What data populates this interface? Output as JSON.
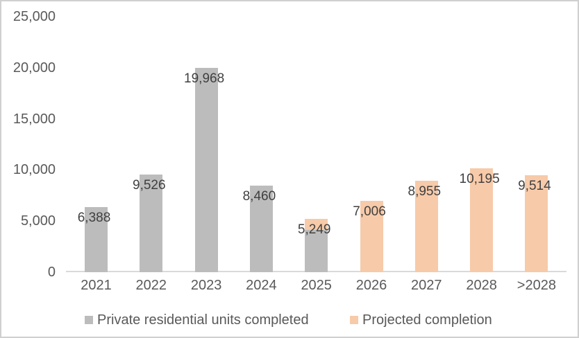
{
  "chart_data": {
    "type": "bar",
    "stacked": true,
    "title": "",
    "xlabel": "",
    "ylabel": "",
    "categories": [
      "2021",
      "2022",
      "2023",
      "2024",
      "2025",
      "2026",
      "2027",
      "2028",
      ">2028"
    ],
    "series": [
      {
        "name": "Private residential units completed",
        "color": "#bcbcbc",
        "values": [
          6388,
          9526,
          19968,
          8460,
          4100,
          0,
          0,
          0,
          0
        ]
      },
      {
        "name": "Projected completion",
        "color": "#f7caa9",
        "values": [
          0,
          0,
          0,
          0,
          1149,
          7006,
          8955,
          10195,
          9514
        ]
      }
    ],
    "bar_total_labels": [
      "6,388",
      "9,526",
      "19,968",
      "8,460",
      "5,249",
      "7,006",
      "8,955",
      "10,195",
      "9,514"
    ],
    "notes": "2025 column is visually split: lower gray segment (completed, ~4,100 est. from pixels) topped by a small orange segment (projected, ~1,149 est.); only the total 5,249 is labeled. All other columns are single-color.",
    "ylim": [
      0,
      25000
    ],
    "y_ticks": {
      "values": [
        0,
        5000,
        10000,
        15000,
        20000,
        25000
      ],
      "labels": [
        "0",
        "5,000",
        "10,000",
        "15,000",
        "20,000",
        "25,000"
      ]
    },
    "grid": false,
    "axis_line_color": "#d9d9d9",
    "tick_label_color": "#595959",
    "data_label_color": "#3f3f3f",
    "legend_position": "bottom"
  }
}
